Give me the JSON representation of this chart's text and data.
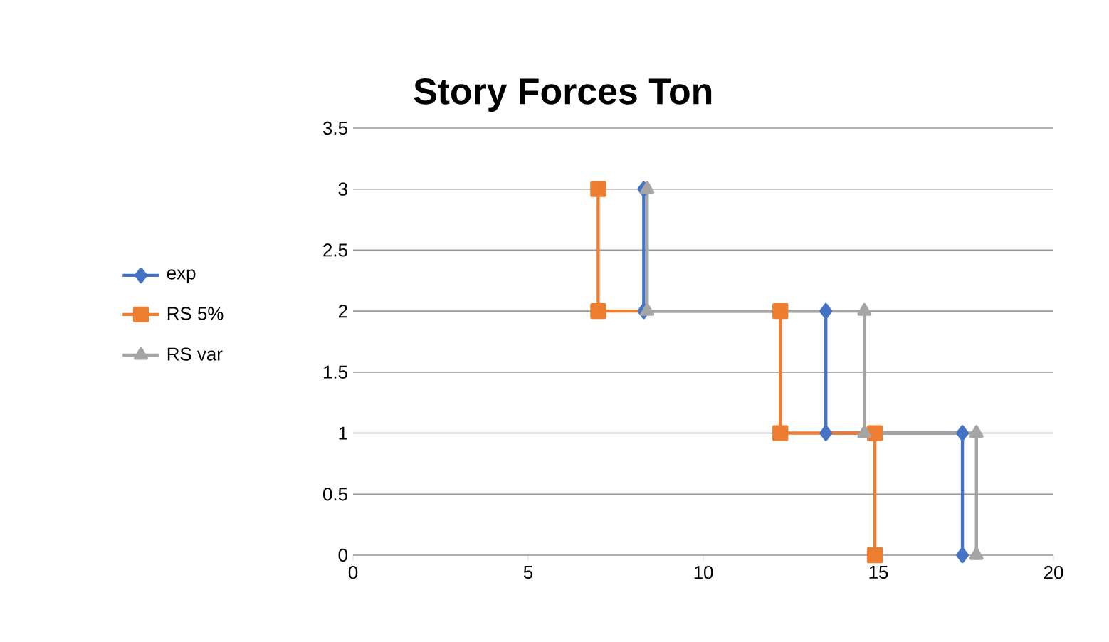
{
  "chart_data": {
    "type": "line",
    "title": "Story Forces  Ton",
    "xlim": [
      0,
      20
    ],
    "xticks": [
      0,
      5,
      10,
      15,
      20
    ],
    "ylim": [
      0,
      3.5
    ],
    "yticks": [
      0,
      0.5,
      1,
      1.5,
      2,
      2.5,
      3,
      3.5
    ],
    "grid": "y",
    "legend": "left",
    "line_style": "solid",
    "series": [
      {
        "name": "exp",
        "color": "#4472c4",
        "marker": "diamond",
        "x": [
          8.3,
          8.3,
          13.5,
          13.5,
          17.4,
          17.4
        ],
        "values": [
          3,
          2,
          2,
          1,
          1,
          0
        ]
      },
      {
        "name": "RS 5%",
        "color": "#ed7d31",
        "marker": "square",
        "x": [
          7.0,
          7.0,
          12.2,
          12.2,
          14.9,
          14.9
        ],
        "values": [
          3,
          2,
          2,
          1,
          1,
          0
        ]
      },
      {
        "name": "RS var",
        "color": "#a5a5a5",
        "marker": "triangle",
        "x": [
          8.4,
          8.4,
          14.6,
          14.6,
          17.8,
          17.8
        ],
        "values": [
          3,
          2,
          2,
          1,
          1,
          0
        ]
      }
    ]
  }
}
